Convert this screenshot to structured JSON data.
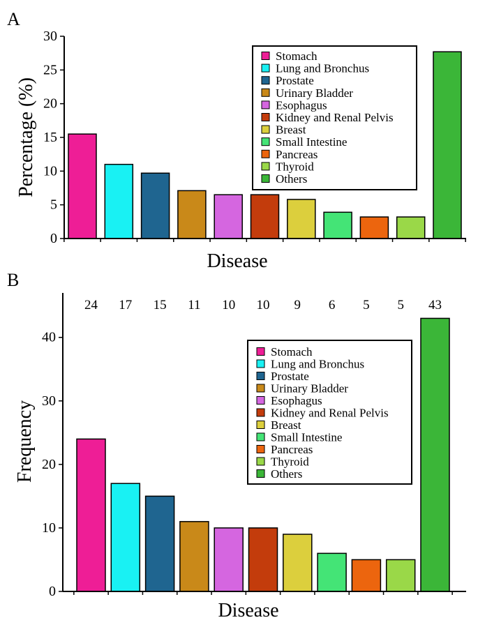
{
  "chart_data": [
    {
      "type": "bar",
      "panel_label": "A",
      "title": "",
      "xlabel": "Disease",
      "ylabel": "Percentage (%)",
      "ylim": [
        0,
        30
      ],
      "yticks": [
        "0",
        "5",
        "10",
        "15",
        "20",
        "25",
        "30"
      ],
      "categories": [
        "Stomach",
        "Lung and Bronchus",
        "Prostate",
        "Urinary Bladder",
        "Esophagus",
        "Kidney and Renal Pelvis",
        "Breast",
        "Small Intestine",
        "Pancreas",
        "Thyroid",
        "Others"
      ],
      "values": [
        15.5,
        11.0,
        9.7,
        7.1,
        6.5,
        6.5,
        5.8,
        3.9,
        3.2,
        3.2,
        27.7
      ],
      "colors": [
        "#ee1e96",
        "#19f1f3",
        "#1f6590",
        "#c98919",
        "#d566e0",
        "#c33c0c",
        "#dccf3d",
        "#44e476",
        "#ec650e",
        "#9ad848",
        "#3bb638"
      ],
      "legend_position": "top-right"
    },
    {
      "type": "bar",
      "panel_label": "B",
      "title": "",
      "xlabel": "Disease",
      "ylabel": "Frequency",
      "ylim": [
        0,
        47
      ],
      "yticks": [
        "0",
        "10",
        "20",
        "30",
        "40"
      ],
      "categories": [
        "Stomach",
        "Lung and Bronchus",
        "Prostate",
        "Urinary Bladder",
        "Esophagus",
        "Kidney and Renal Pelvis",
        "Breast",
        "Small Intestine",
        "Pancreas",
        "Thyroid",
        "Others"
      ],
      "values": [
        24,
        17,
        15,
        11,
        10,
        10,
        9,
        6,
        5,
        5,
        43
      ],
      "data_labels": [
        "24",
        "17",
        "15",
        "11",
        "10",
        "10",
        "9",
        "6",
        "5",
        "5",
        "43"
      ],
      "colors": [
        "#ee1e96",
        "#19f1f3",
        "#1f6590",
        "#c98919",
        "#d566e0",
        "#c33c0c",
        "#dccf3d",
        "#44e476",
        "#ec650e",
        "#9ad848",
        "#3bb638"
      ],
      "legend_position": "center-right"
    }
  ]
}
